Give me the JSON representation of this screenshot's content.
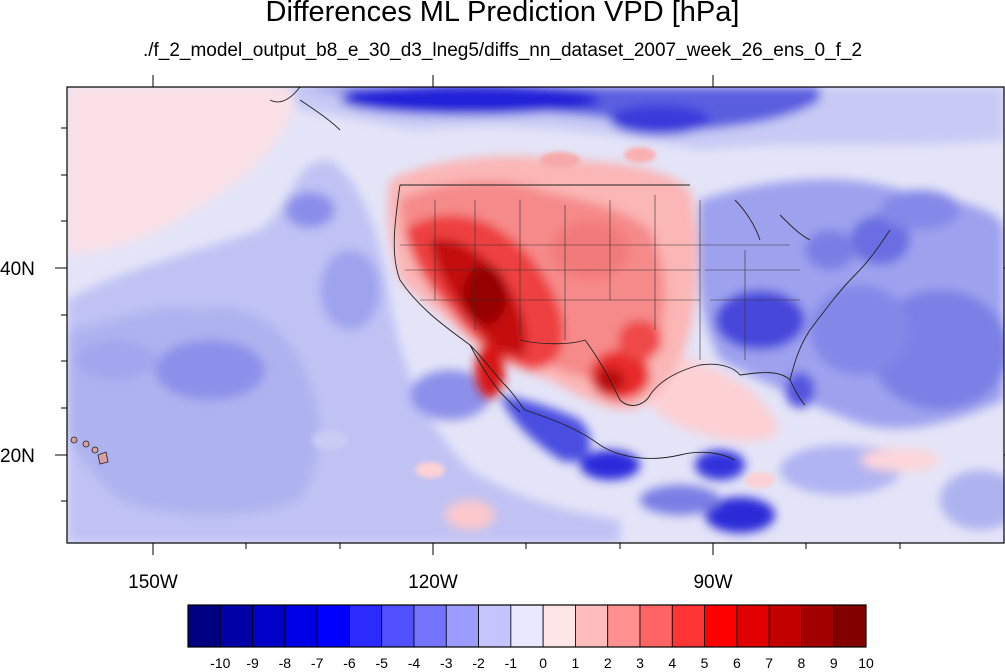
{
  "figure": {
    "title": "Differences ML Prediction VPD [hPa]",
    "subtitle": "./f_2_model_output_b8_e_30_d3_lneg5/diffs_nn_dataset_2007_week_26_ens_0_f_2"
  },
  "axes": {
    "x_ticks": [
      "150W",
      "120W",
      "90W"
    ],
    "y_ticks": [
      "40N",
      "20N"
    ]
  },
  "colorbar": {
    "labels": [
      "-10",
      "-9",
      "-8",
      "-7",
      "-6",
      "-5",
      "-4",
      "-3",
      "-2",
      "-1",
      "0",
      "1",
      "2",
      "3",
      "4",
      "5",
      "6",
      "7",
      "8",
      "9",
      "10"
    ],
    "colors": [
      "#000080",
      "#0000a6",
      "#0000c8",
      "#0000e6",
      "#0000ff",
      "#2b2bff",
      "#5050ff",
      "#7474ff",
      "#9c9cff",
      "#c4c4ff",
      "#e8e8ff",
      "#ffe6e6",
      "#ffbcbc",
      "#ff9090",
      "#ff6464",
      "#ff3434",
      "#ff0000",
      "#e00000",
      "#c20000",
      "#a20000",
      "#820000"
    ]
  },
  "palette": {
    "background_field": "#e4e4f8",
    "ocean_blue": "#b0b4f2",
    "deep_blue": "#3a3ad8",
    "light_red": "#ffc8c8",
    "mid_red": "#f07070",
    "strong_red": "#d81818",
    "dark_red": "#960000",
    "border_line": "#222222"
  }
}
